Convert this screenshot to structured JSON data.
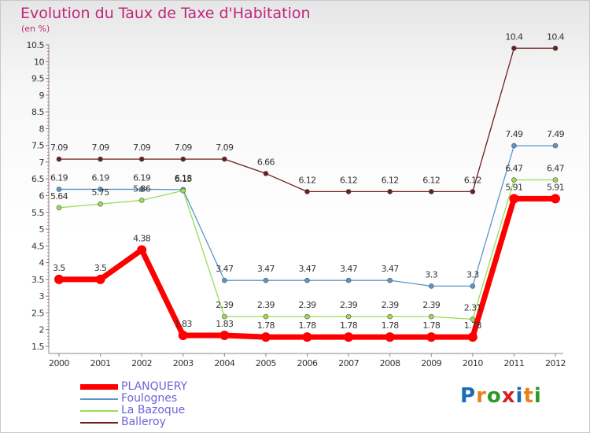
{
  "chart_data": {
    "type": "line",
    "title": "Evolution du Taux de Taxe d'Habitation",
    "subtitle": "(en %)",
    "x": [
      "2000",
      "2001",
      "2002",
      "2003",
      "2004",
      "2005",
      "2006",
      "2007",
      "2008",
      "2009",
      "2010",
      "2011",
      "2012"
    ],
    "ylim": [
      1.5,
      10.5
    ],
    "yticks": [
      "1.5",
      "2",
      "2.5",
      "3",
      "3.5",
      "4",
      "4.5",
      "5",
      "5.5",
      "6",
      "6.5",
      "7",
      "7.5",
      "8",
      "8.5",
      "9",
      "9.5",
      "10",
      "10.5"
    ],
    "grid": false,
    "legend_position": "bottom-left",
    "series": [
      {
        "name": "Balleroy",
        "color": "#6b1e1e",
        "width": 1.3,
        "values": [
          7.09,
          7.09,
          7.09,
          7.09,
          7.09,
          6.66,
          6.12,
          6.12,
          6.12,
          6.12,
          6.12,
          10.4,
          10.4
        ],
        "labels": [
          "7.09",
          "7.09",
          "7.09",
          "7.09",
          "7.09",
          "6.66",
          "6.12",
          "6.12",
          "6.12",
          "6.12",
          "6.12",
          "10.4",
          "10.4"
        ]
      },
      {
        "name": "Foulognes",
        "color": "#5b95c8",
        "width": 1.3,
        "values": [
          6.19,
          6.19,
          6.19,
          6.18,
          3.47,
          3.47,
          3.47,
          3.47,
          3.47,
          3.3,
          3.3,
          7.49,
          7.49
        ],
        "labels": [
          "6.19",
          "6.19",
          "6.19",
          "6.18",
          "3.47",
          "3.47",
          "3.47",
          "3.47",
          "3.47",
          "3.3",
          "3.3",
          "7.49",
          "7.49"
        ]
      },
      {
        "name": "La Bazoque",
        "color": "#99dd55",
        "width": 1.3,
        "values": [
          5.64,
          5.75,
          5.86,
          6.15,
          2.39,
          2.39,
          2.39,
          2.39,
          2.39,
          2.39,
          2.31,
          6.47,
          6.47
        ],
        "labels": [
          "5.64",
          "5.75",
          "5.86",
          "6.15",
          "2.39",
          "2.39",
          "2.39",
          "2.39",
          "2.39",
          "2.39",
          "2.31",
          "6.47",
          "6.47"
        ]
      },
      {
        "name": "PLANQUERY",
        "color": "#ff0000",
        "width": 7,
        "values": [
          3.5,
          3.5,
          4.38,
          1.83,
          1.83,
          1.78,
          1.78,
          1.78,
          1.78,
          1.78,
          1.78,
          5.91,
          5.91
        ],
        "labels": [
          "3.5",
          "3.5",
          "4.38",
          "1.83",
          "1.83",
          "1.78",
          "1.78",
          "1.78",
          "1.78",
          "1.78",
          "1.78",
          "5.91",
          "5.91"
        ]
      }
    ]
  },
  "legend": {
    "items": [
      {
        "label": "PLANQUERY",
        "color": "#ff0000",
        "thickness": 7
      },
      {
        "label": "Foulognes",
        "color": "#5b95c8",
        "thickness": 2
      },
      {
        "label": "La Bazoque",
        "color": "#99dd55",
        "thickness": 2
      },
      {
        "label": "Balleroy",
        "color": "#6b1e1e",
        "thickness": 2
      }
    ]
  },
  "logo": {
    "text": "Proxiti",
    "letters": [
      {
        "ch": "P",
        "color": "#1a6bb5"
      },
      {
        "ch": "r",
        "color": "#e8811a"
      },
      {
        "ch": "o",
        "color": "#2a9a2a"
      },
      {
        "ch": "x",
        "color": "#d82020"
      },
      {
        "ch": "i",
        "color": "#1a6bb5"
      },
      {
        "ch": "t",
        "color": "#e8811a"
      },
      {
        "ch": "i",
        "color": "#2a9a2a"
      }
    ]
  }
}
